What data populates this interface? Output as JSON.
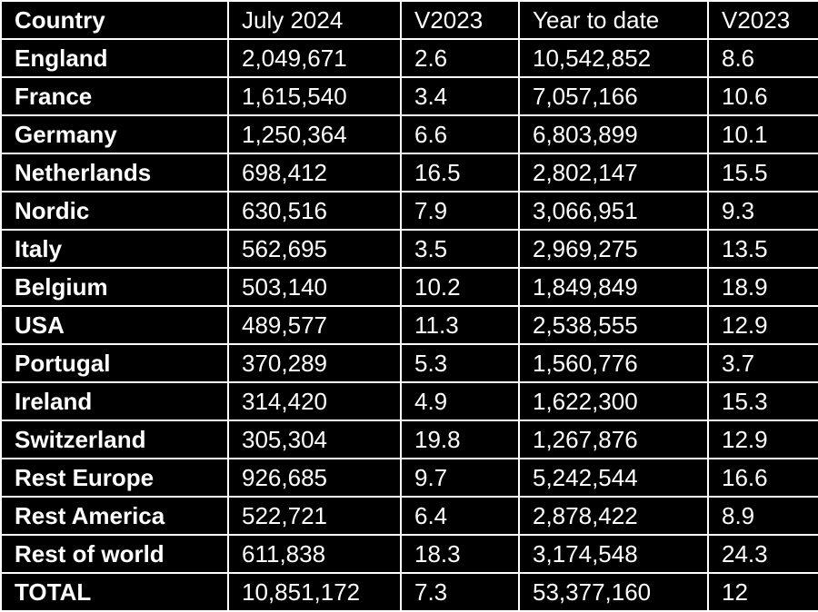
{
  "table": {
    "headers": [
      "Country",
      "July 2024",
      "V2023",
      "Year to date",
      "V2023"
    ],
    "rows": [
      [
        "England",
        "2,049,671",
        "2.6",
        "10,542,852",
        "8.6"
      ],
      [
        "France",
        "1,615,540",
        "3.4",
        "7,057,166",
        "10.6"
      ],
      [
        "Germany",
        "1,250,364",
        "6.6",
        "6,803,899",
        "10.1"
      ],
      [
        "Netherlands",
        "698,412",
        "16.5",
        "2,802,147",
        "15.5"
      ],
      [
        "Nordic",
        "630,516",
        "7.9",
        "3,066,951",
        "9.3"
      ],
      [
        "Italy",
        "562,695",
        "3.5",
        "2,969,275",
        "13.5"
      ],
      [
        "Belgium",
        "503,140",
        "10.2",
        "1,849,849",
        "18.9"
      ],
      [
        "USA",
        "489,577",
        "11.3",
        "2,538,555",
        "12.9"
      ],
      [
        "Portugal",
        "370,289",
        "5.3",
        "1,560,776",
        "3.7"
      ],
      [
        "Ireland",
        "314,420",
        "4.9",
        "1,622,300",
        "15.3"
      ],
      [
        "Switzerland",
        "305,304",
        "19.8",
        "1,267,876",
        "12.9"
      ],
      [
        "Rest Europe",
        "926,685",
        "9.7",
        "5,242,544",
        "16.6"
      ],
      [
        "Rest America",
        "522,721",
        "6.4",
        "2,878,422",
        "8.9"
      ],
      [
        "Rest of world",
        "611,838",
        "18.3",
        "3,174,548",
        "24.3"
      ],
      [
        "TOTAL",
        "10,851,172",
        "7.3",
        "53,377,160",
        "12"
      ]
    ]
  },
  "colors": {
    "background": "#000000",
    "text": "#ffffff",
    "border": "#ffffff"
  }
}
